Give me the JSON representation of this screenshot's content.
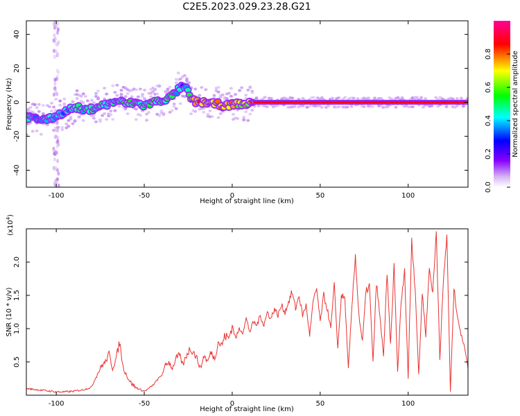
{
  "figure_title": "C2E5.2023.029.23.28.G21",
  "chart_data": [
    {
      "type": "heatmap",
      "xlabel": "Height of straight line (km)",
      "ylabel": "Frequency (Hz)",
      "xlim": [
        -117,
        134
      ],
      "ylim": [
        -50,
        48
      ],
      "xticks": [
        -100,
        -50,
        0,
        50,
        100
      ],
      "yticks": [
        -40,
        -20,
        0,
        20,
        40
      ],
      "colorbar": {
        "label": "Normalized spectral amplitude",
        "ticks": [
          0.0,
          0.2,
          0.4,
          0.6,
          0.8
        ],
        "range": [
          0,
          1
        ],
        "colormap": [
          "#ffffff",
          "#cfa8f0",
          "#8800ff",
          "#0000ff",
          "#00ffff",
          "#00ff00",
          "#ffff00",
          "#ff0000",
          "#ff0099"
        ]
      },
      "ridge": {
        "x": [
          -117,
          -110,
          -104,
          -100,
          -96,
          -92,
          -88,
          -84,
          -80,
          -75,
          -70,
          -65,
          -60,
          -55,
          -50,
          -45,
          -40,
          -35,
          -32,
          -29,
          -26,
          -24,
          -22,
          -20,
          -17,
          -14,
          -11,
          -8,
          -5,
          -2,
          0,
          3,
          6,
          9,
          12,
          20,
          40,
          60,
          80,
          100,
          120,
          134
        ],
        "y": [
          -9,
          -10,
          -10,
          -8,
          -6,
          -4,
          -3,
          -5,
          -4,
          -2,
          -1,
          1,
          -1,
          0,
          -2,
          0,
          1,
          3,
          6,
          9,
          8,
          3,
          1,
          0,
          0,
          0,
          -1,
          -1,
          -2,
          -2,
          -1,
          -1,
          -1,
          -1,
          0,
          0,
          0,
          0,
          0,
          0,
          0,
          0
        ],
        "amplitude": [
          0.5,
          0.5,
          0.55,
          0.5,
          0.5,
          0.5,
          0.55,
          0.5,
          0.6,
          0.55,
          0.55,
          0.5,
          0.6,
          0.6,
          0.55,
          0.6,
          0.55,
          0.6,
          0.55,
          0.45,
          0.5,
          0.65,
          0.8,
          0.85,
          0.85,
          0.8,
          0.75,
          0.8,
          0.8,
          0.75,
          0.8,
          0.75,
          0.7,
          0.75,
          0.88,
          0.88,
          0.88,
          0.88,
          0.88,
          0.88,
          0.88,
          0.88
        ]
      }
    },
    {
      "type": "line",
      "xlabel": "Height of straight line (km)",
      "ylabel": "SNR (10 * v/v)",
      "exponent_label": "(x10",
      "exponent_power": "4",
      "exponent_close": ")",
      "xlim": [
        -117,
        134
      ],
      "ylim": [
        0,
        2.5
      ],
      "xticks": [
        -100,
        -50,
        0,
        50,
        100
      ],
      "yticks": [
        0.5,
        1.0,
        1.5,
        2.0
      ],
      "ytick_labels": [
        "0.5",
        "1.0",
        "1.5",
        "2.0"
      ],
      "series": [
        {
          "color": "#e8312f",
          "x": [
            -117,
            -110,
            -100,
            -95,
            -90,
            -85,
            -80,
            -77,
            -74,
            -72,
            -70,
            -68,
            -66,
            -64,
            -62,
            -60,
            -58,
            -55,
            -52,
            -50,
            -48,
            -45,
            -42,
            -40,
            -38,
            -36,
            -34,
            -32,
            -30,
            -28,
            -26,
            -24,
            -22,
            -20,
            -18,
            -16,
            -14,
            -12,
            -10,
            -8,
            -6,
            -4,
            -2,
            0,
            2,
            4,
            6,
            8,
            10,
            12,
            14,
            16,
            18,
            20,
            22,
            24,
            26,
            28,
            30,
            32,
            34,
            36,
            38,
            40,
            42,
            44,
            46,
            48,
            50,
            52,
            54,
            56,
            58,
            60,
            62,
            64,
            66,
            68,
            70,
            72,
            74,
            76,
            78,
            80,
            82,
            84,
            86,
            88,
            90,
            92,
            94,
            96,
            98,
            100,
            102,
            104,
            106,
            108,
            110,
            112,
            114,
            116,
            118,
            120,
            122,
            124,
            126,
            128,
            130,
            132,
            134
          ],
          "values": [
            0.1,
            0.08,
            0.05,
            0.05,
            0.06,
            0.08,
            0.12,
            0.3,
            0.45,
            0.5,
            0.62,
            0.4,
            0.55,
            0.8,
            0.42,
            0.3,
            0.2,
            0.12,
            0.08,
            0.06,
            0.09,
            0.15,
            0.25,
            0.3,
            0.45,
            0.5,
            0.4,
            0.55,
            0.6,
            0.45,
            0.6,
            0.7,
            0.65,
            0.55,
            0.4,
            0.6,
            0.5,
            0.65,
            0.55,
            0.8,
            0.75,
            0.9,
            0.85,
            1.05,
            0.85,
            1.0,
            0.95,
            1.15,
            0.95,
            1.1,
            1.05,
            1.2,
            1.05,
            1.25,
            1.15,
            1.3,
            1.2,
            1.35,
            1.25,
            1.4,
            1.55,
            1.3,
            1.5,
            1.2,
            1.35,
            0.9,
            1.4,
            1.6,
            1.1,
            1.5,
            1.3,
            1.0,
            1.65,
            0.7,
            1.5,
            1.45,
            0.4,
            1.3,
            2.1,
            1.2,
            0.8,
            1.55,
            1.65,
            0.5,
            1.7,
            1.15,
            0.6,
            1.8,
            0.75,
            1.95,
            0.35,
            1.4,
            1.85,
            0.25,
            2.35,
            1.6,
            0.3,
            1.55,
            0.9,
            1.9,
            1.55,
            2.45,
            0.55,
            1.7,
            2.4,
            0.05,
            1.6,
            1.2,
            0.9,
            0.75,
            0.4
          ]
        }
      ]
    }
  ]
}
